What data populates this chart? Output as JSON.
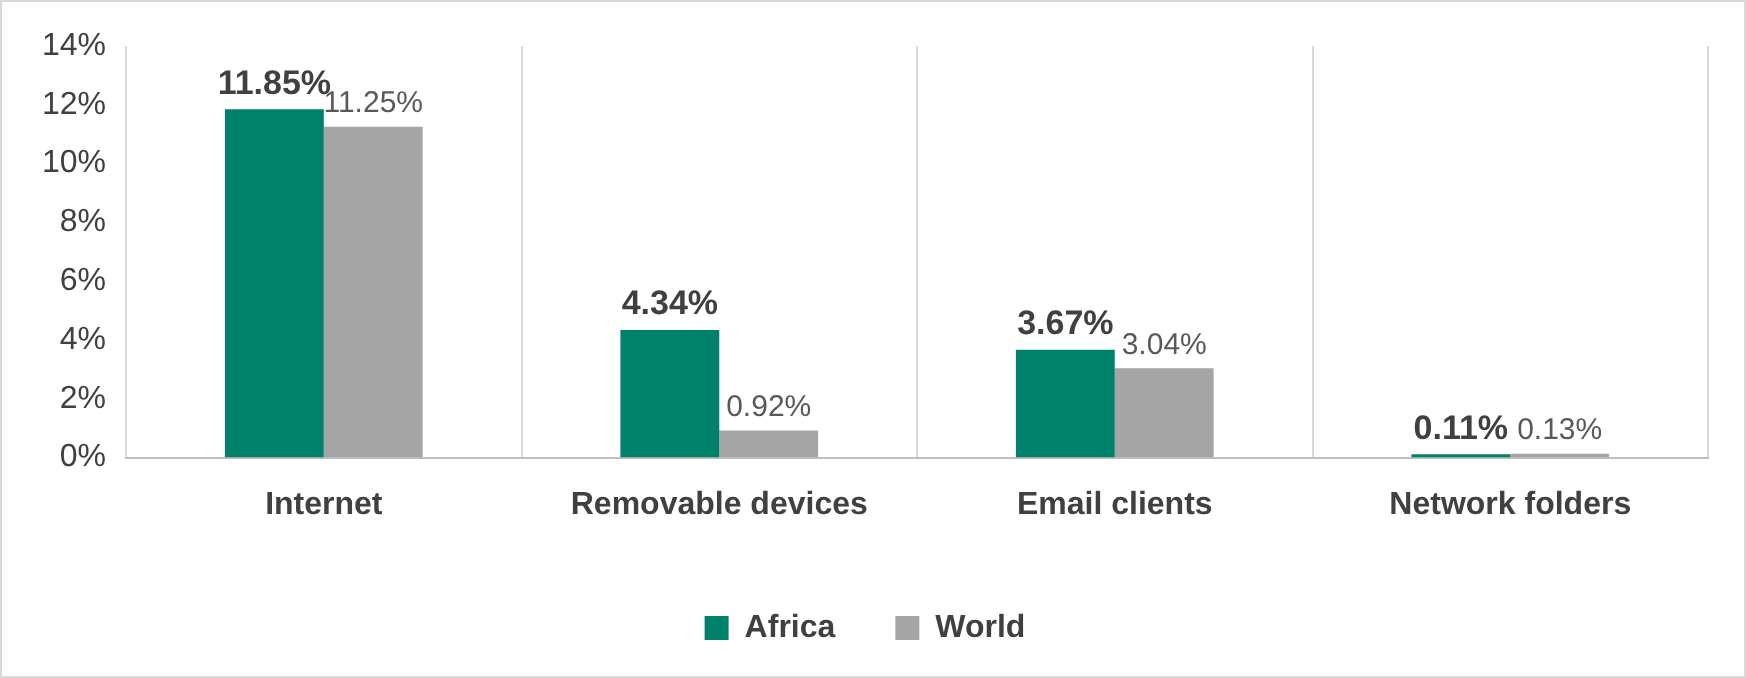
{
  "chart_data": {
    "type": "bar",
    "categories": [
      "Internet",
      "Removable devices",
      "Email clients",
      "Network folders"
    ],
    "series": [
      {
        "name": "Africa",
        "color": "#00816b",
        "values": [
          11.85,
          4.34,
          3.67,
          0.11
        ],
        "value_labels": [
          "11.85%",
          "4.34%",
          "3.67%",
          "0.11%"
        ]
      },
      {
        "name": "World",
        "color": "#a5a5a5",
        "values": [
          11.25,
          0.92,
          3.04,
          0.13
        ],
        "value_labels": [
          "11.25%",
          "0.92%",
          "3.04%",
          "0.13%"
        ]
      }
    ],
    "ylim": [
      0,
      14
    ],
    "yticks": [
      {
        "value": 0,
        "label": "0%"
      },
      {
        "value": 2,
        "label": "2%"
      },
      {
        "value": 4,
        "label": "4%"
      },
      {
        "value": 6,
        "label": "6%"
      },
      {
        "value": 8,
        "label": "8%"
      },
      {
        "value": 10,
        "label": "10%"
      },
      {
        "value": 12,
        "label": "12%"
      },
      {
        "value": 14,
        "label": "14%"
      }
    ],
    "grid": "x",
    "legend": "bottom"
  }
}
